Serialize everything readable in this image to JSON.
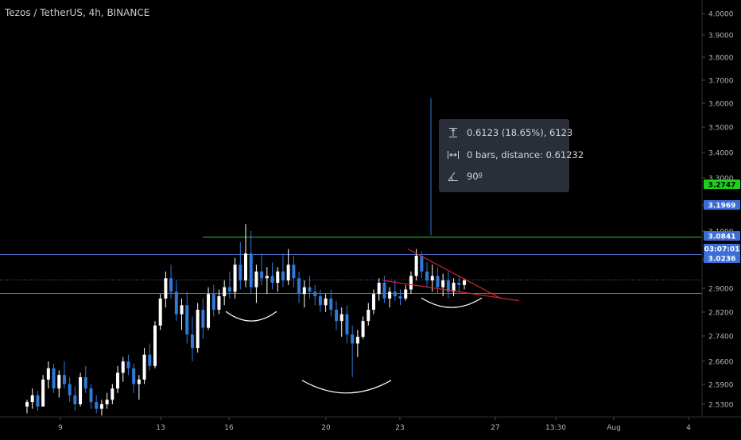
{
  "header": {
    "title": "Tezos / TetherUS, 4h, BINANCE"
  },
  "colors": {
    "background": "#000000",
    "bull": "#ffffff",
    "bear": "#2f7ad6",
    "blue_line": "#4f6fc7",
    "green_line": "#19d219",
    "red_line": "#d1242f",
    "vertical_line": "#2f7ad6",
    "arc": "#ffffff"
  },
  "measure_tooltip": {
    "icons": [
      "price-range-icon",
      "bars-distance-icon",
      "angle-icon"
    ],
    "price_change": "0.6123 (18.65%), 6123",
    "bars_distance": "0 bars, distance: 0.61232",
    "angle": "90º"
  },
  "chart_data": {
    "type": "candlestick",
    "title": "Tezos / TetherUS, 4h, BINANCE",
    "y_axis": {
      "range": [
        2.49,
        4.03
      ],
      "ticks": [
        "4.0000",
        "3.9000",
        "3.8000",
        "3.7000",
        "3.6000",
        "3.5000",
        "3.4000",
        "3.3000",
        "3.2000",
        "3.1000",
        "3.0000",
        "2.9000",
        "2.8200",
        "2.7400",
        "2.6600",
        "2.5900",
        "2.5300"
      ]
    },
    "x_axis": {
      "ticks": [
        "9",
        "13",
        "16",
        "20",
        "23",
        "27",
        "13:30",
        "Aug",
        "4"
      ]
    },
    "price_labels": [
      {
        "value": "3.2747",
        "color": "#19d219"
      },
      {
        "value": "3.1969",
        "color": "#3b6fd6"
      },
      {
        "value": "3.0841",
        "color": "#3b6fd6"
      },
      {
        "value": "03:07:01",
        "color": "#3b6fd6"
      },
      {
        "value": "3.0236",
        "color": "#3b6fd6"
      }
    ],
    "horizontal_lines": [
      {
        "value": 3.2747,
        "color": "green"
      },
      {
        "value": 3.1969,
        "color": "blue"
      },
      {
        "value": 3.0841,
        "color": "blue",
        "style": "dotted"
      },
      {
        "value": 3.0236,
        "color": "blue"
      }
    ],
    "measure_line": {
      "x": "24",
      "from": 3.28,
      "to": 3.89
    },
    "trendlines": [
      {
        "from": [
          "23",
          3.22
        ],
        "to": [
          "26",
          3.0
        ]
      },
      {
        "from": [
          "22",
          3.08
        ],
        "to": [
          "27",
          2.99
        ]
      }
    ],
    "arcs": [
      {
        "label": "left-shoulder",
        "center_x": "16",
        "bottom": 2.9
      },
      {
        "label": "head",
        "center_x": "21",
        "bottom": 2.58
      },
      {
        "label": "right-shoulder",
        "center_x": "24",
        "bottom": 2.96
      }
    ],
    "candles": [
      [
        2.52,
        2.55,
        2.49,
        2.54
      ],
      [
        2.54,
        2.6,
        2.51,
        2.57
      ],
      [
        2.57,
        2.59,
        2.5,
        2.52
      ],
      [
        2.52,
        2.66,
        2.52,
        2.64
      ],
      [
        2.64,
        2.72,
        2.6,
        2.69
      ],
      [
        2.69,
        2.71,
        2.58,
        2.6
      ],
      [
        2.6,
        2.68,
        2.56,
        2.66
      ],
      [
        2.66,
        2.72,
        2.6,
        2.62
      ],
      [
        2.62,
        2.65,
        2.54,
        2.57
      ],
      [
        2.57,
        2.61,
        2.5,
        2.53
      ],
      [
        2.53,
        2.67,
        2.52,
        2.65
      ],
      [
        2.65,
        2.7,
        2.58,
        2.6
      ],
      [
        2.6,
        2.62,
        2.51,
        2.54
      ],
      [
        2.54,
        2.57,
        2.49,
        2.51
      ],
      [
        2.51,
        2.55,
        2.48,
        2.53
      ],
      [
        2.53,
        2.58,
        2.51,
        2.55
      ],
      [
        2.55,
        2.62,
        2.53,
        2.6
      ],
      [
        2.6,
        2.7,
        2.58,
        2.67
      ],
      [
        2.67,
        2.74,
        2.63,
        2.72
      ],
      [
        2.72,
        2.75,
        2.66,
        2.69
      ],
      [
        2.69,
        2.71,
        2.58,
        2.62
      ],
      [
        2.62,
        2.66,
        2.55,
        2.64
      ],
      [
        2.64,
        2.78,
        2.62,
        2.75
      ],
      [
        2.75,
        2.8,
        2.68,
        2.7
      ],
      [
        2.7,
        2.9,
        2.69,
        2.88
      ],
      [
        2.88,
        3.02,
        2.86,
        3.0
      ],
      [
        3.0,
        3.12,
        2.96,
        3.09
      ],
      [
        3.09,
        3.15,
        3.0,
        3.03
      ],
      [
        3.03,
        3.08,
        2.9,
        2.93
      ],
      [
        2.93,
        3.0,
        2.86,
        2.97
      ],
      [
        2.97,
        3.03,
        2.8,
        2.84
      ],
      [
        2.84,
        2.92,
        2.72,
        2.78
      ],
      [
        2.78,
        2.98,
        2.76,
        2.95
      ],
      [
        2.95,
        3.0,
        2.82,
        2.87
      ],
      [
        2.87,
        3.05,
        2.86,
        3.02
      ],
      [
        3.02,
        3.06,
        2.92,
        2.95
      ],
      [
        2.95,
        3.04,
        2.93,
        3.01
      ],
      [
        3.01,
        3.08,
        2.97,
        3.05
      ],
      [
        3.05,
        3.12,
        3.0,
        3.03
      ],
      [
        3.03,
        3.18,
        3.0,
        3.15
      ],
      [
        3.15,
        3.25,
        3.04,
        3.08
      ],
      [
        3.08,
        3.33,
        3.05,
        3.2
      ],
      [
        3.2,
        3.3,
        3.02,
        3.05
      ],
      [
        3.05,
        3.15,
        2.98,
        3.12
      ],
      [
        3.12,
        3.2,
        3.06,
        3.09
      ],
      [
        3.09,
        3.14,
        3.02,
        3.1
      ],
      [
        3.1,
        3.16,
        3.04,
        3.07
      ],
      [
        3.07,
        3.14,
        3.03,
        3.12
      ],
      [
        3.12,
        3.2,
        3.05,
        3.08
      ],
      [
        3.08,
        3.22,
        3.06,
        3.15
      ],
      [
        3.15,
        3.19,
        3.05,
        3.09
      ],
      [
        3.09,
        3.12,
        2.98,
        3.02
      ],
      [
        3.02,
        3.08,
        2.96,
        3.05
      ],
      [
        3.05,
        3.1,
        3.0,
        3.03
      ],
      [
        3.03,
        3.06,
        2.97,
        3.01
      ],
      [
        3.01,
        3.04,
        2.94,
        2.97
      ],
      [
        2.97,
        3.02,
        2.94,
        3.0
      ],
      [
        3.0,
        3.04,
        2.92,
        2.95
      ],
      [
        2.95,
        2.99,
        2.86,
        2.9
      ],
      [
        2.9,
        2.96,
        2.83,
        2.93
      ],
      [
        2.93,
        2.97,
        2.8,
        2.84
      ],
      [
        2.84,
        2.88,
        2.65,
        2.8
      ],
      [
        2.8,
        2.86,
        2.74,
        2.83
      ],
      [
        2.83,
        2.92,
        2.82,
        2.9
      ],
      [
        2.9,
        2.98,
        2.88,
        2.95
      ],
      [
        2.95,
        3.04,
        2.93,
        3.02
      ],
      [
        3.02,
        3.09,
        2.99,
        3.07
      ],
      [
        3.07,
        3.1,
        2.98,
        3.0
      ],
      [
        3.0,
        3.05,
        2.96,
        3.03
      ],
      [
        3.03,
        3.08,
        2.99,
        3.01
      ],
      [
        3.01,
        3.04,
        2.97,
        3.0
      ],
      [
        3.0,
        3.06,
        2.99,
        3.04
      ],
      [
        3.04,
        3.12,
        3.02,
        3.1
      ],
      [
        3.1,
        3.22,
        3.08,
        3.19
      ],
      [
        3.19,
        3.21,
        3.09,
        3.12
      ],
      [
        3.12,
        3.16,
        3.05,
        3.08
      ],
      [
        3.08,
        3.15,
        3.03,
        3.1
      ],
      [
        3.1,
        3.14,
        3.02,
        3.05
      ],
      [
        3.05,
        3.11,
        3.01,
        3.08
      ],
      [
        3.08,
        3.12,
        3.0,
        3.03
      ],
      [
        3.03,
        3.09,
        3.01,
        3.07
      ],
      [
        3.07,
        3.1,
        3.03,
        3.06
      ],
      [
        3.06,
        3.09,
        3.04,
        3.08
      ]
    ]
  }
}
